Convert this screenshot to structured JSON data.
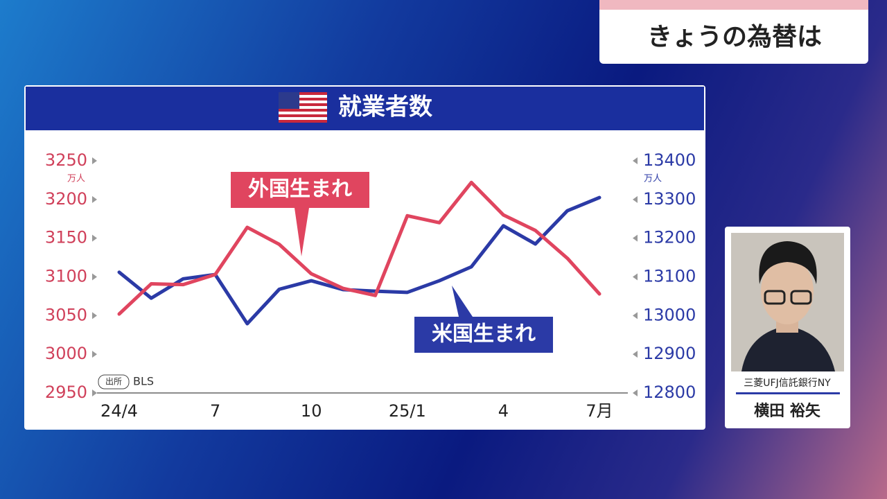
{
  "header": {
    "title": "きょうの為替は"
  },
  "chart_data": {
    "type": "line",
    "title": "就業者数",
    "categories": [
      "24/4",
      null,
      null,
      "7",
      null,
      null,
      "10",
      null,
      null,
      "25/1",
      null,
      null,
      "4",
      null,
      null,
      "7月"
    ],
    "series": [
      {
        "name": "外国生まれ",
        "color": "#e0455f",
        "axis": "y",
        "values": [
          3052,
          3091,
          3090,
          3103,
          3164,
          3142,
          3104,
          3085,
          3076,
          3179,
          3170,
          3222,
          3180,
          3160,
          3124,
          3078
        ]
      },
      {
        "name": "米国生まれ",
        "color": "#2b3aa6",
        "axis": "y2",
        "values": [
          13112,
          13045,
          13095,
          13106,
          12979,
          13068,
          13090,
          13067,
          13063,
          13060,
          13090,
          13126,
          13232,
          13185,
          13271,
          13305
        ]
      }
    ],
    "ylim": [
      2950,
      3250
    ],
    "yticks": [
      2950,
      3000,
      3050,
      3100,
      3150,
      3200,
      3250
    ],
    "y2lim": [
      12800,
      13400
    ],
    "y2ticks": [
      12800,
      12900,
      13000,
      13100,
      13200,
      13300,
      13400
    ],
    "ylabel": "万人",
    "y2label": "万人",
    "source_label": "出所",
    "source": "BLS"
  },
  "person": {
    "company": "三菱UFJ信託銀行NY",
    "name": "横田 裕矢"
  }
}
